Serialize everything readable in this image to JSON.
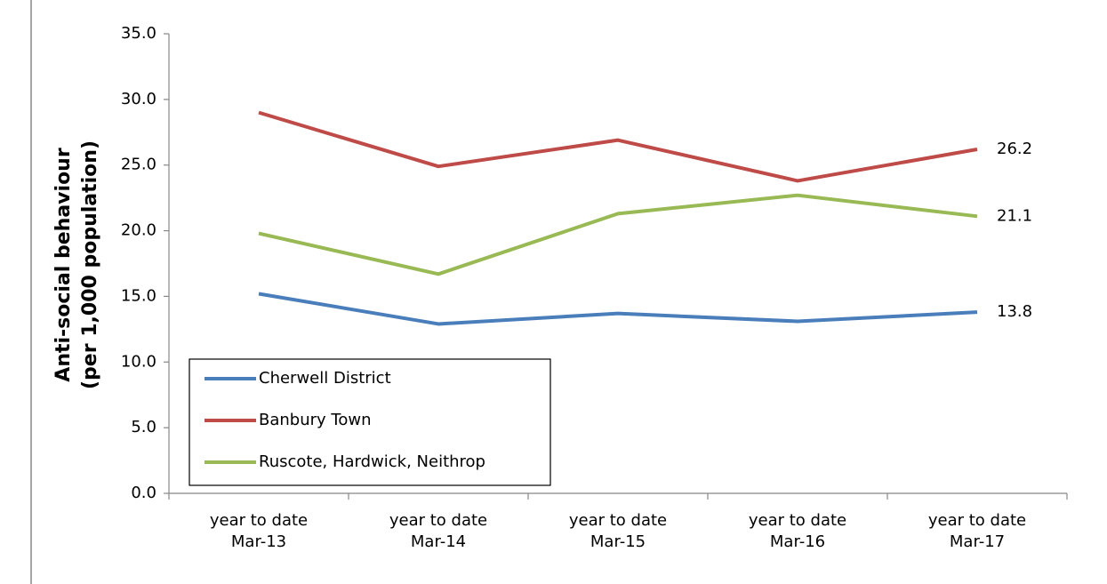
{
  "chart_data": {
    "type": "line",
    "y_label": [
      "Anti-social behaviour",
      "(per 1,000 population)"
    ],
    "categories": [
      "year to date Mar-13",
      "year to date Mar-14",
      "year to date Mar-15",
      "year to date Mar-16",
      "year to date Mar-17"
    ],
    "series": [
      {
        "name": "Cherwell District",
        "color": "#4a7ebb",
        "values": [
          15.2,
          12.9,
          13.7,
          13.1,
          13.8
        ]
      },
      {
        "name": "Banbury Town",
        "color": "#be4b48",
        "values": [
          29.0,
          24.9,
          26.9,
          23.8,
          26.2
        ]
      },
      {
        "name": "Ruscote, Hardwick, Neithrop",
        "color": "#98b954",
        "values": [
          19.8,
          16.7,
          21.3,
          22.7,
          21.1
        ]
      }
    ],
    "ylim": [
      0,
      35
    ],
    "yticks": [
      {
        "value": 0,
        "label": "0.0"
      },
      {
        "value": 5,
        "label": "5.0"
      },
      {
        "value": 10,
        "label": "10.0"
      },
      {
        "value": 15,
        "label": "15.0"
      },
      {
        "value": 20,
        "label": "20.0"
      },
      {
        "value": 25,
        "label": "25.0"
      },
      {
        "value": 30,
        "label": "30.0"
      },
      {
        "value": 35,
        "label": "35.0"
      }
    ],
    "legend": "bottom-left"
  }
}
